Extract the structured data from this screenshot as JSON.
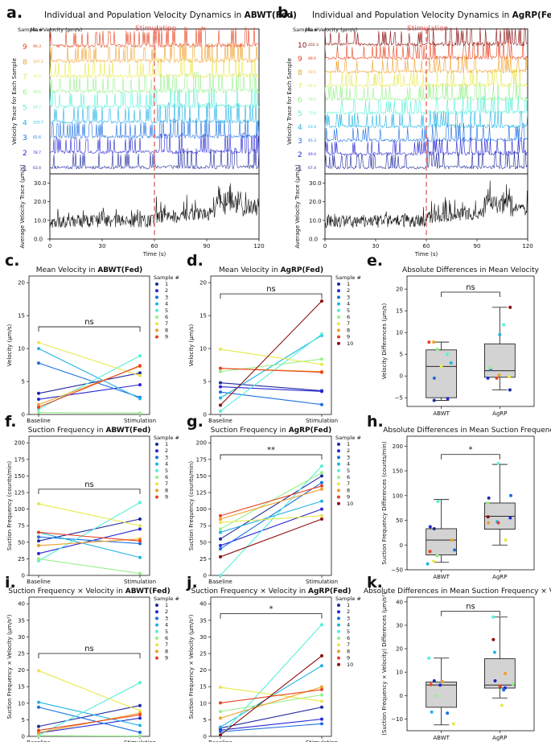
{
  "labels": {
    "a": "a.",
    "b": "b.",
    "c": "c.",
    "d": "d.",
    "e": "e.",
    "f": "f.",
    "g": "g.",
    "h": "h.",
    "i": "i.",
    "j": "j.",
    "k": "k."
  },
  "colors": [
    "#1f2a9e",
    "#2727d6",
    "#1a6fe0",
    "#22b3e6",
    "#55f0d8",
    "#96f08a",
    "#e8e84a",
    "#f0a02c",
    "#e8421e",
    "#8a0f0f"
  ],
  "chart_data": [
    {
      "id": "a",
      "type": "line",
      "title_prefix": "Individual and Population Velocity Dynamics in ",
      "title_bold": "ABWT(Fed)",
      "stim_label": "Stimulation",
      "stim_time": 60,
      "sample_header": "Sample #",
      "max_header": "Max Velocity (μm/s)",
      "samples": [
        "1",
        "2",
        "3",
        "4",
        "5",
        "6",
        "7",
        "8",
        "9"
      ],
      "max_velocity": [
        "63.4",
        "78.7",
        "65.6",
        "103.7",
        "50.7",
        "38.6",
        "75.5",
        "107.2",
        "96.3"
      ],
      "ylabel_top": "Velocity Trace for Each Sample",
      "ylabel_bottom": "Average Velocity Trace (μm/s)",
      "xlabel": "Time (s)",
      "xticks": [
        "0",
        "30",
        "60",
        "90",
        "120"
      ],
      "yticks_bottom": [
        "0.0",
        "10.0",
        "20.0",
        "30.0"
      ],
      "xlim": [
        0,
        120
      ],
      "ylim_bottom": [
        0,
        35
      ]
    },
    {
      "id": "b",
      "type": "line",
      "title_prefix": "Individual and Population Velocity Dynamics in ",
      "title_bold": "AgRP(Fed)",
      "stim_label": "Stimulation",
      "stim_time": 60,
      "sample_header": "Sample #",
      "max_header": "Max Velocity (μm/s)",
      "samples": [
        "1",
        "2",
        "3",
        "4",
        "5",
        "6",
        "7",
        "8",
        "9",
        "10"
      ],
      "max_velocity": [
        "67.4",
        "49.4",
        "45.3",
        "63.4",
        "73.6",
        "79.4",
        "61.6",
        "50.5",
        "88.6",
        "202.3"
      ],
      "ylabel_top": "Velocity Trace for Each Sample",
      "ylabel_bottom": "Average Velocity Trace (μm/s)",
      "xlabel": "Time (s)",
      "xticks": [
        "0",
        "30",
        "60",
        "90",
        "120"
      ],
      "yticks_bottom": [
        "0.0",
        "10.0",
        "20.0",
        "30.0"
      ],
      "xlim": [
        0,
        120
      ],
      "ylim_bottom": [
        0,
        35
      ]
    },
    {
      "id": "c",
      "type": "line",
      "title_prefix": "Mean Velocity in ",
      "title_bold": "ABWT(Fed)",
      "ylabel": "Velocity (μm/s)",
      "categories": [
        "Baseline",
        "Stimulation"
      ],
      "ylim": [
        0,
        21
      ],
      "yticks": [
        "0",
        "5",
        "10",
        "15",
        "20"
      ],
      "sig": "ns",
      "sig_y": 13.3,
      "legend_title": "Sample #",
      "series": [
        {
          "name": "1",
          "values": [
            3.2,
            6.3
          ]
        },
        {
          "name": "2",
          "values": [
            2.3,
            4.5
          ]
        },
        {
          "name": "3",
          "values": [
            7.8,
            2.6
          ]
        },
        {
          "name": "4",
          "values": [
            10.0,
            2.4
          ]
        },
        {
          "name": "5",
          "values": [
            0.8,
            8.9
          ]
        },
        {
          "name": "6",
          "values": [
            0.3,
            0.2
          ]
        },
        {
          "name": "7",
          "values": [
            10.9,
            5.9
          ]
        },
        {
          "name": "8",
          "values": [
            1.5,
            7.3
          ]
        },
        {
          "name": "9",
          "values": [
            1.1,
            7.4
          ]
        }
      ]
    },
    {
      "id": "d",
      "type": "line",
      "title_prefix": "Mean Velocity in ",
      "title_bold": "AgRP(Fed)",
      "ylabel": "Velocity (μm/s)",
      "categories": [
        "Baseline",
        "Stimulation"
      ],
      "ylim": [
        0,
        21
      ],
      "yticks": [
        "0",
        "5",
        "10",
        "15",
        "20"
      ],
      "sig": "ns",
      "sig_y": 18.3,
      "legend_title": "Sample #",
      "series": [
        {
          "name": "1",
          "values": [
            4.8,
            3.6
          ]
        },
        {
          "name": "2",
          "values": [
            4.2,
            3.5
          ]
        },
        {
          "name": "3",
          "values": [
            3.4,
            1.5
          ]
        },
        {
          "name": "4",
          "values": [
            2.5,
            12.0
          ]
        },
        {
          "name": "5",
          "values": [
            0.5,
            12.2
          ]
        },
        {
          "name": "6",
          "values": [
            6.5,
            8.4
          ]
        },
        {
          "name": "7",
          "values": [
            9.9,
            7.6
          ]
        },
        {
          "name": "8",
          "values": [
            7.0,
            6.5
          ]
        },
        {
          "name": "9",
          "values": [
            7.0,
            6.4
          ]
        },
        {
          "name": "10",
          "values": [
            1.4,
            17.2
          ]
        }
      ]
    },
    {
      "id": "e",
      "type": "box",
      "title": "Absolute Differences in Mean Velocity",
      "ylabel": "Velocity Differences (μm/s)",
      "categories": [
        "ABWT",
        "AgRP"
      ],
      "ylim": [
        -7,
        23
      ],
      "yticks": [
        "−5",
        "0",
        "5",
        "10",
        "15",
        "20"
      ],
      "sig": "ns",
      "sig_y": 19.3,
      "boxes": [
        {
          "q1": -5.0,
          "median": 2.2,
          "q3": 6.0,
          "whislo": -5.6,
          "whishi": 7.8,
          "points": [
            -5.6,
            -5.2,
            -0.5,
            3.0,
            5.0,
            6.2,
            2.2,
            7.8,
            7.8
          ]
        },
        {
          "q1": -0.3,
          "median": 1.2,
          "q3": 7.4,
          "whislo": -3.2,
          "whishi": 15.8,
          "points": [
            -3.2,
            -0.5,
            1.5,
            9.5,
            11.8,
            1.9,
            -0.2,
            0.2,
            -0.5,
            15.8
          ]
        }
      ]
    },
    {
      "id": "f",
      "type": "line",
      "title_prefix": "Suction Frequency in ",
      "title_bold": "ABWT(Fed)",
      "ylabel": "Suction Frequency (counts/min)",
      "categories": [
        "Baseline",
        "Stimulation"
      ],
      "ylim": [
        0,
        210
      ],
      "yticks": [
        "0",
        "25",
        "50",
        "75",
        "100",
        "125",
        "150",
        "175",
        "200"
      ],
      "sig": "ns",
      "sig_y": 130,
      "legend_title": "Sample #",
      "series": [
        {
          "name": "1",
          "values": [
            52,
            85
          ]
        },
        {
          "name": "2",
          "values": [
            33,
            70
          ]
        },
        {
          "name": "3",
          "values": [
            58,
            48
          ]
        },
        {
          "name": "4",
          "values": [
            65,
            27
          ]
        },
        {
          "name": "5",
          "values": [
            22,
            110
          ]
        },
        {
          "name": "6",
          "values": [
            25,
            3
          ]
        },
        {
          "name": "7",
          "values": [
            108,
            75
          ]
        },
        {
          "name": "8",
          "values": [
            45,
            55
          ]
        },
        {
          "name": "9",
          "values": [
            65,
            52
          ]
        }
      ]
    },
    {
      "id": "g",
      "type": "line",
      "title_prefix": "Suction Frequency in ",
      "title_bold": "AgRP(Fed)",
      "ylabel": "Suction Frequency (counts/min)",
      "categories": [
        "Baseline",
        "Stimulation"
      ],
      "ylim": [
        0,
        210
      ],
      "yticks": [
        "0",
        "25",
        "50",
        "75",
        "100",
        "125",
        "150",
        "175",
        "200"
      ],
      "sig": "**",
      "sig_y": 182,
      "legend_title": "Sample #",
      "series": [
        {
          "name": "1",
          "values": [
            55,
            150
          ]
        },
        {
          "name": "2",
          "values": [
            45,
            100
          ]
        },
        {
          "name": "3",
          "values": [
            40,
            140
          ]
        },
        {
          "name": "4",
          "values": [
            65,
            112
          ]
        },
        {
          "name": "5",
          "values": [
            0,
            165
          ]
        },
        {
          "name": "6",
          "values": [
            70,
            155
          ]
        },
        {
          "name": "7",
          "values": [
            80,
            90
          ]
        },
        {
          "name": "8",
          "values": [
            85,
            130
          ]
        },
        {
          "name": "9",
          "values": [
            90,
            135
          ]
        },
        {
          "name": "10",
          "values": [
            28,
            85
          ]
        }
      ]
    },
    {
      "id": "h",
      "type": "box",
      "title": "Absolute Differences in Mean Suction Frequency",
      "ylabel": "Suction Frequency Differences (counts/min)",
      "categories": [
        "ABWT",
        "AgRP"
      ],
      "ylim": [
        -50,
        220
      ],
      "yticks": [
        "−50",
        "0",
        "50",
        "100",
        "150",
        "200"
      ],
      "sig": "*",
      "sig_y": 183,
      "boxes": [
        {
          "q1": -20,
          "median": 10,
          "q3": 33,
          "whislo": -35,
          "whishi": 92,
          "points": [
            33,
            37,
            -10,
            -38,
            88,
            -22,
            -33,
            10,
            -13
          ]
        },
        {
          "q1": 32,
          "median": 58,
          "q3": 85,
          "whislo": 0,
          "whishi": 163,
          "points": [
            95,
            55,
            100,
            47,
            165,
            85,
            10,
            45,
            45,
            57
          ]
        }
      ]
    },
    {
      "id": "i",
      "type": "line",
      "title_prefix": "Suction Frequency × Velocity in ",
      "title_bold": "ABWT(Fed)",
      "ylabel": "Suction Frequency × Velocity (μm/s²)",
      "categories": [
        "Baseline",
        "Stimulation"
      ],
      "ylim": [
        0,
        42
      ],
      "yticks": [
        "0",
        "5",
        "10",
        "15",
        "20",
        "25",
        "30",
        "35",
        "40"
      ],
      "sig": "ns",
      "sig_y": 25,
      "legend_title": "Sample #",
      "series": [
        {
          "name": "1",
          "values": [
            3.0,
            9.3
          ]
        },
        {
          "name": "2",
          "values": [
            1.0,
            5.5
          ]
        },
        {
          "name": "3",
          "values": [
            8.8,
            1.2
          ]
        },
        {
          "name": "4",
          "values": [
            10.3,
            3.3
          ]
        },
        {
          "name": "5",
          "values": [
            0.3,
            16.2
          ]
        },
        {
          "name": "6",
          "values": [
            0.2,
            0.1
          ]
        },
        {
          "name": "7",
          "values": [
            19.8,
            7.7
          ]
        },
        {
          "name": "8",
          "values": [
            1.1,
            7.0
          ]
        },
        {
          "name": "9",
          "values": [
            1.8,
            6.5
          ]
        }
      ]
    },
    {
      "id": "j",
      "type": "line",
      "title_prefix": "Suction Frequency × Velocity in ",
      "title_bold": "AgRP(Fed)",
      "ylabel": "Suction Frequency × Velocity (μm/s²)",
      "categories": [
        "Baseline",
        "Stimulation"
      ],
      "ylim": [
        0,
        42
      ],
      "yticks": [
        "0",
        "5",
        "10",
        "15",
        "20",
        "25",
        "30",
        "35",
        "40"
      ],
      "sig": "*",
      "sig_y": 37,
      "legend_title": "Sample #",
      "series": [
        {
          "name": "1",
          "values": [
            2.5,
            8.8
          ]
        },
        {
          "name": "2",
          "values": [
            1.9,
            5.2
          ]
        },
        {
          "name": "3",
          "values": [
            1.4,
            3.8
          ]
        },
        {
          "name": "4",
          "values": [
            2.8,
            21.3
          ]
        },
        {
          "name": "5",
          "values": [
            0.2,
            33.7
          ]
        },
        {
          "name": "6",
          "values": [
            7.5,
            12.5
          ]
        },
        {
          "name": "7",
          "values": [
            14.8,
            10.6
          ]
        },
        {
          "name": "8",
          "values": [
            5.5,
            14.9
          ]
        },
        {
          "name": "9",
          "values": [
            10.1,
            14.1
          ]
        },
        {
          "name": "10",
          "values": [
            0.4,
            24.3
          ]
        }
      ]
    },
    {
      "id": "k",
      "type": "box",
      "title": "Absolute Differences in Mean Suction Frequency × Velocity",
      "ylabel": "(Suction Frequency × Velocity) Differences (μm/s²)",
      "categories": [
        "ABWT",
        "AgRP"
      ],
      "ylim": [
        -15,
        42
      ],
      "yticks": [
        "−10",
        "0",
        "10",
        "20",
        "30",
        "40"
      ],
      "sig": "ns",
      "sig_y": 36,
      "boxes": [
        {
          "q1": -5.0,
          "median": 4.5,
          "q3": 5.8,
          "whislo": -12.5,
          "whishi": 16.0,
          "points": [
            6.3,
            4.5,
            -7.5,
            -7.0,
            16.0,
            -0.1,
            -12.1,
            5.9,
            4.7
          ]
        },
        {
          "q1": 3.2,
          "median": 4.5,
          "q3": 15.7,
          "whislo": -1.0,
          "whishi": 33.5,
          "points": [
            6.3,
            3.3,
            2.4,
            18.5,
            33.5,
            5.0,
            -4.2,
            9.4,
            4.0,
            23.9
          ]
        }
      ]
    }
  ]
}
